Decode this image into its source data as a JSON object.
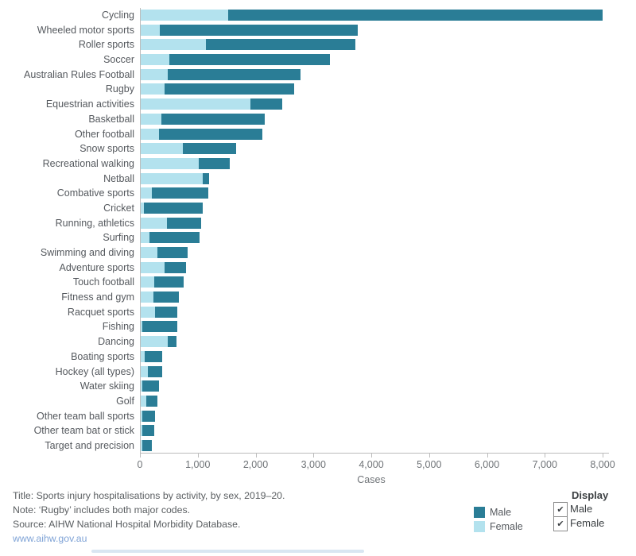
{
  "chart_data": {
    "type": "bar",
    "orientation": "horizontal",
    "stacked": true,
    "xlabel": "Cases",
    "xlim": [
      0,
      8000
    ],
    "xticks": [
      0,
      1000,
      2000,
      3000,
      4000,
      5000,
      6000,
      7000,
      8000
    ],
    "grid": false,
    "legend_position": "bottom-right",
    "categories": [
      "Cycling",
      "Wheeled motor sports",
      "Roller sports",
      "Soccer",
      "Australian Rules Football",
      "Rugby",
      "Equestrian activities",
      "Basketball",
      "Other football",
      "Snow sports",
      "Recreational walking",
      "Netball",
      "Combative sports",
      "Cricket",
      "Running, athletics",
      "Surfing",
      "Swimming and diving",
      "Adventure sports",
      "Touch football",
      "Fitness and gym",
      "Racquet sports",
      "Fishing",
      "Dancing",
      "Boating sports",
      "Hockey (all types)",
      "Water skiing",
      "Golf",
      "Other team ball sports",
      "Other team bat or stick",
      "Target and precision"
    ],
    "series": [
      {
        "name": "Female",
        "color": "#b3e2ee",
        "values": [
          1520,
          340,
          1140,
          510,
          480,
          430,
          1910,
          370,
          330,
          740,
          1020,
          1090,
          200,
          70,
          470,
          170,
          300,
          430,
          250,
          240,
          260,
          45,
          480,
          80,
          140,
          40,
          105,
          40,
          40,
          45
        ]
      },
      {
        "name": "Male",
        "color": "#2a7d96",
        "values": [
          6480,
          3420,
          2590,
          2780,
          2300,
          2230,
          550,
          1790,
          1790,
          930,
          530,
          100,
          980,
          1020,
          590,
          860,
          525,
          365,
          500,
          435,
          385,
          595,
          150,
          305,
          240,
          295,
          195,
          220,
          205,
          155
        ]
      }
    ]
  },
  "axis": {
    "xlabel": "Cases",
    "tick_labels": [
      "0",
      "1,000",
      "2,000",
      "3,000",
      "4,000",
      "5,000",
      "6,000",
      "7,000",
      "8,000"
    ]
  },
  "legend": {
    "male_label": "Male",
    "female_label": "Female"
  },
  "display_panel": {
    "title": "Display",
    "options": [
      {
        "label": "Male",
        "checked": true
      },
      {
        "label": "Female",
        "checked": true
      }
    ]
  },
  "footer": {
    "title_line": "Title: Sports injury hospitalisations by activity, by sex, 2019–20.",
    "note_line": "Note: ‘Rugby’ includes both major codes.",
    "source_line": "Source: AIHW National Hospital Morbidity Database.",
    "link": "www.aihw.gov.au"
  },
  "icons": {
    "checkmark": "✔"
  },
  "colors": {
    "male": "#2a7d96",
    "female": "#b3e2ee",
    "axis_line": "#bcbcbc",
    "label_text": "#55595e",
    "link": "#7fa3d6"
  }
}
